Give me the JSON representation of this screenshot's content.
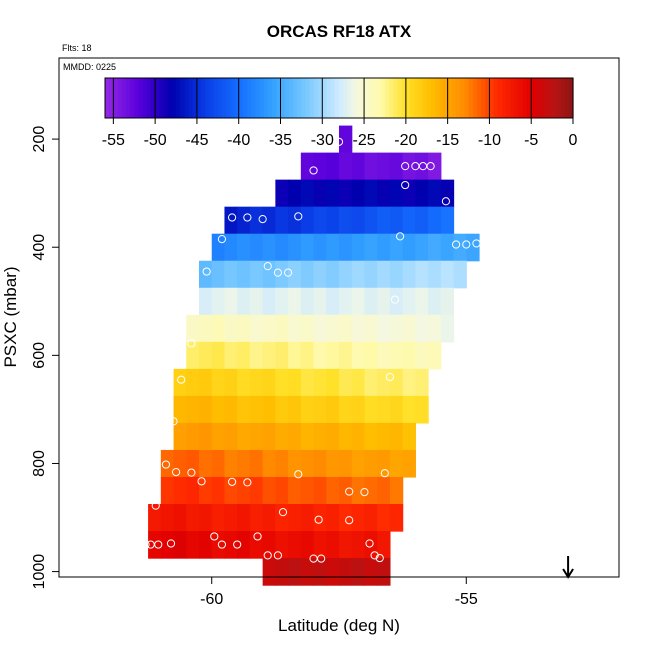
{
  "chart_data": {
    "type": "heatmap",
    "title": "ORCAS RF18 ATX",
    "flights_label": "Flts: 18",
    "date_label": "MMDD: 0225",
    "xlabel": "Latitude (deg N)",
    "ylabel": "PSXC (mbar)",
    "xlim": [
      -63.0,
      -52.0
    ],
    "ylim": [
      1010,
      50
    ],
    "x_ticks": [
      -60,
      -55
    ],
    "x_tick_labels": [
      "-60",
      "-55"
    ],
    "y_ticks": [
      200,
      400,
      600,
      800,
      1000
    ],
    "y_tick_labels": [
      "200",
      "400",
      "600",
      "800",
      "1000"
    ],
    "colorbar": {
      "min": -56,
      "max": 0,
      "ticks": [
        -55,
        -50,
        -45,
        -40,
        -35,
        -30,
        -25,
        -20,
        -15,
        -10,
        -5,
        0
      ],
      "tick_labels": [
        "-55",
        "-50",
        "-45",
        "-40",
        "-35",
        "-30",
        "-25",
        "-20",
        "-15",
        "-10",
        "-5",
        "0"
      ]
    },
    "cell_height_mbar": 50,
    "cell_width_deg": 0.25,
    "rows": [
      {
        "p": 200,
        "lat0": -57.5,
        "lat1": -57.25,
        "t0": -52,
        "t1": -52
      },
      {
        "p": 250,
        "lat0": -58.25,
        "lat1": -55.5,
        "t0": -52,
        "t1": -54
      },
      {
        "p": 300,
        "lat0": -58.75,
        "lat1": -55.25,
        "t0": -48,
        "t1": -48
      },
      {
        "p": 350,
        "lat0": -59.75,
        "lat1": -55.25,
        "t0": -46,
        "t1": -40
      },
      {
        "p": 400,
        "lat0": -60.0,
        "lat1": -54.75,
        "t0": -38,
        "t1": -35
      },
      {
        "p": 450,
        "lat0": -60.25,
        "lat1": -55.0,
        "t0": -33,
        "t1": -29
      },
      {
        "p": 500,
        "lat0": -60.25,
        "lat1": -55.25,
        "t0": -27,
        "t1": -27
      },
      {
        "p": 550,
        "lat0": -60.5,
        "lat1": -55.25,
        "t0": -24,
        "t1": -26
      },
      {
        "p": 600,
        "lat0": -60.5,
        "lat1": -55.5,
        "t0": -21,
        "t1": -24
      },
      {
        "p": 650,
        "lat0": -60.75,
        "lat1": -55.75,
        "t0": -18,
        "t1": -22
      },
      {
        "p": 700,
        "lat0": -60.75,
        "lat1": -55.75,
        "t0": -16,
        "t1": -20
      },
      {
        "p": 750,
        "lat0": -60.75,
        "lat1": -56.0,
        "t0": -14,
        "t1": -17
      },
      {
        "p": 800,
        "lat0": -61.0,
        "lat1": -56.0,
        "t0": -11,
        "t1": -15
      },
      {
        "p": 850,
        "lat0": -61.0,
        "lat1": -56.25,
        "t0": -9,
        "t1": -12
      },
      {
        "p": 900,
        "lat0": -61.25,
        "lat1": -56.25,
        "t0": -7,
        "t1": -9
      },
      {
        "p": 950,
        "lat0": -61.25,
        "lat1": -56.5,
        "t0": -5,
        "t1": -7
      },
      {
        "p": 1000,
        "lat0": -59.0,
        "lat1": -56.5,
        "t0": -3,
        "t1": -3
      }
    ],
    "observations": [
      {
        "lat": -57.5,
        "p": 205
      },
      {
        "lat": -58.0,
        "p": 258
      },
      {
        "lat": -56.2,
        "p": 250
      },
      {
        "lat": -56.0,
        "p": 250
      },
      {
        "lat": -55.85,
        "p": 250
      },
      {
        "lat": -55.7,
        "p": 250
      },
      {
        "lat": -56.2,
        "p": 285
      },
      {
        "lat": -55.4,
        "p": 315
      },
      {
        "lat": -59.6,
        "p": 345
      },
      {
        "lat": -59.3,
        "p": 345
      },
      {
        "lat": -59.0,
        "p": 348
      },
      {
        "lat": -58.3,
        "p": 343
      },
      {
        "lat": -59.8,
        "p": 385
      },
      {
        "lat": -56.3,
        "p": 380
      },
      {
        "lat": -55.2,
        "p": 395
      },
      {
        "lat": -55.0,
        "p": 395
      },
      {
        "lat": -54.8,
        "p": 393
      },
      {
        "lat": -60.1,
        "p": 445
      },
      {
        "lat": -58.9,
        "p": 435
      },
      {
        "lat": -58.7,
        "p": 447
      },
      {
        "lat": -58.5,
        "p": 447
      },
      {
        "lat": -56.4,
        "p": 497
      },
      {
        "lat": -60.4,
        "p": 578
      },
      {
        "lat": -60.6,
        "p": 645
      },
      {
        "lat": -56.5,
        "p": 640
      },
      {
        "lat": -60.75,
        "p": 722
      },
      {
        "lat": -60.9,
        "p": 802
      },
      {
        "lat": -60.7,
        "p": 816
      },
      {
        "lat": -60.4,
        "p": 817
      },
      {
        "lat": -60.2,
        "p": 833
      },
      {
        "lat": -59.6,
        "p": 834
      },
      {
        "lat": -59.3,
        "p": 835
      },
      {
        "lat": -58.3,
        "p": 820
      },
      {
        "lat": -57.3,
        "p": 852
      },
      {
        "lat": -57.0,
        "p": 853
      },
      {
        "lat": -56.6,
        "p": 818
      },
      {
        "lat": -61.1,
        "p": 878
      },
      {
        "lat": -58.6,
        "p": 890
      },
      {
        "lat": -57.9,
        "p": 904
      },
      {
        "lat": -57.3,
        "p": 905
      },
      {
        "lat": -61.3,
        "p": 950
      },
      {
        "lat": -61.2,
        "p": 950
      },
      {
        "lat": -61.05,
        "p": 950
      },
      {
        "lat": -60.8,
        "p": 948
      },
      {
        "lat": -59.95,
        "p": 935
      },
      {
        "lat": -59.8,
        "p": 950
      },
      {
        "lat": -59.5,
        "p": 950
      },
      {
        "lat": -59.1,
        "p": 935
      },
      {
        "lat": -58.9,
        "p": 970
      },
      {
        "lat": -58.7,
        "p": 970
      },
      {
        "lat": -58.0,
        "p": 976
      },
      {
        "lat": -57.85,
        "p": 976
      },
      {
        "lat": -56.9,
        "p": 948
      },
      {
        "lat": -56.8,
        "p": 970
      },
      {
        "lat": -56.7,
        "p": 975
      }
    ],
    "arrow": {
      "lat": -53.0,
      "direction": "down"
    }
  }
}
